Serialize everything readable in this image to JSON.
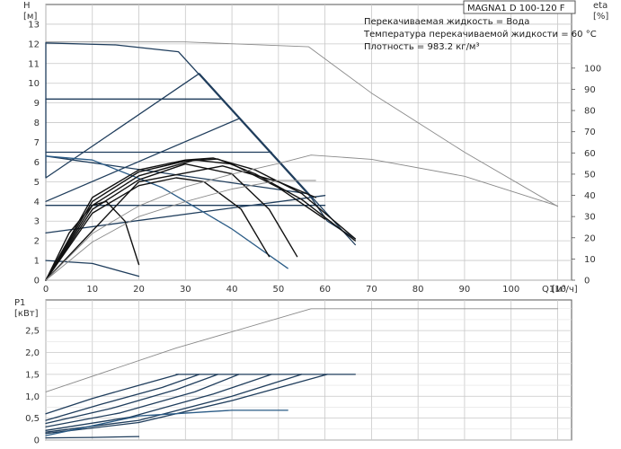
{
  "model": "MAGNA1 D 100-120 F",
  "fluid_info": [
    "Перекачиваемая жидкость = Вода",
    "Температура перекачиваемой жидкости = 60 °C",
    "Плотность = 983.2 кг/м³"
  ],
  "colors": {
    "grid": "#c8c8c8",
    "dark_curve": "#1f3d5c",
    "blue_curve": "#2a5b86",
    "gray_curve": "#8a8a8a",
    "black_curve": "#111111",
    "axis": "#555555"
  },
  "chart_data": [
    {
      "type": "line",
      "ylabel": "H",
      "yunit": "[м]",
      "y2label": "eta",
      "y2unit": "[%]",
      "xlabel": "Q",
      "xunit": "[м³/ч]",
      "xlim": [
        0,
        113
      ],
      "ylim": [
        0,
        14
      ],
      "y2lim": [
        0,
        130
      ],
      "xticks": [
        0,
        10,
        20,
        30,
        40,
        50,
        60,
        70,
        80,
        90,
        100,
        110
      ],
      "yticks": [
        0,
        1,
        2,
        3,
        4,
        5,
        6,
        7,
        8,
        9,
        10,
        11,
        12,
        13
      ],
      "y2ticks": [
        0,
        10,
        20,
        30,
        40,
        50,
        60,
        70,
        80,
        90,
        100
      ],
      "grid": true,
      "series": [
        {
          "style": "gray",
          "axis": "y",
          "points": [
            [
              0,
              12.1
            ],
            [
              30,
              12.1
            ],
            [
              56.5,
              11.85
            ],
            [
              70,
              9.5
            ],
            [
              90,
              6.5
            ],
            [
              110,
              3.75
            ]
          ]
        },
        {
          "style": "dark",
          "axis": "y",
          "points": [
            [
              0,
              12.05
            ],
            [
              15,
              11.95
            ],
            [
              28.5,
              11.6
            ],
            [
              57,
              4.2
            ],
            [
              60.5,
              3.0
            ],
            [
              66.5,
              2.1
            ]
          ]
        },
        {
          "style": "dark",
          "axis": "y",
          "points": [
            [
              0,
              12.05
            ],
            [
              0,
              5.2
            ],
            [
              33,
              10.5
            ],
            [
              66.5,
              1.8
            ]
          ]
        },
        {
          "style": "dark",
          "axis": "y",
          "points": [
            [
              0,
              9.2
            ],
            [
              37.5,
              9.2
            ]
          ]
        },
        {
          "style": "dark",
          "axis": "y",
          "points": [
            [
              0,
              4.0
            ],
            [
              41.5,
              8.2
            ]
          ]
        },
        {
          "style": "dark",
          "axis": "y",
          "points": [
            [
              0,
              6.5
            ],
            [
              48.5,
              6.5
            ]
          ]
        },
        {
          "style": "dark",
          "axis": "y",
          "points": [
            [
              0,
              6.3
            ],
            [
              56,
              4.4
            ]
          ]
        },
        {
          "style": "dark",
          "axis": "y",
          "points": [
            [
              0,
              2.4
            ],
            [
              60,
              4.3
            ]
          ]
        },
        {
          "style": "dark",
          "axis": "y",
          "points": [
            [
              0,
              3.8
            ],
            [
              60,
              3.8
            ]
          ]
        },
        {
          "style": "dark",
          "axis": "y",
          "points": [
            [
              0,
              1.0
            ],
            [
              10,
              0.85
            ],
            [
              20,
              0.2
            ]
          ]
        },
        {
          "style": "blue",
          "axis": "y",
          "points": [
            [
              0,
              6.3
            ],
            [
              10,
              6.1
            ],
            [
              25,
              4.7
            ],
            [
              40,
              2.6
            ],
            [
              52,
              0.6
            ]
          ]
        },
        {
          "style": "black",
          "axis": "y",
          "points": [
            [
              0,
              0
            ],
            [
              10,
              4.2
            ],
            [
              20,
              5.6
            ],
            [
              30,
              6.1
            ],
            [
              36,
              6.2
            ],
            [
              45,
              5.6
            ],
            [
              55,
              4.4
            ],
            [
              66.5,
              2.1
            ]
          ]
        },
        {
          "style": "black",
          "axis": "y",
          "points": [
            [
              0,
              0
            ],
            [
              10,
              4.0
            ],
            [
              20,
              5.5
            ],
            [
              30,
              6.05
            ],
            [
              37,
              6.15
            ],
            [
              45,
              5.4
            ],
            [
              55,
              4.1
            ],
            [
              66.5,
              2.0
            ]
          ]
        },
        {
          "style": "black",
          "axis": "y",
          "points": [
            [
              0,
              0
            ],
            [
              10,
              3.8
            ],
            [
              20,
              5.3
            ],
            [
              32,
              6.1
            ],
            [
              40,
              5.9
            ],
            [
              50,
              4.7
            ],
            [
              60,
              3.1
            ]
          ]
        },
        {
          "style": "black",
          "axis": "y",
          "points": [
            [
              0,
              0
            ],
            [
              10,
              3.6
            ],
            [
              20,
              5.1
            ],
            [
              30,
              5.9
            ],
            [
              40,
              5.4
            ],
            [
              48,
              3.6
            ],
            [
              54,
              1.2
            ]
          ]
        },
        {
          "style": "black",
          "axis": "y",
          "points": [
            [
              0,
              0
            ],
            [
              10,
              3.4
            ],
            [
              20,
              4.8
            ],
            [
              28,
              5.2
            ],
            [
              34,
              5.0
            ],
            [
              42,
              3.6
            ],
            [
              48,
              1.2
            ]
          ]
        },
        {
          "style": "black",
          "axis": "y",
          "points": [
            [
              0,
              0
            ],
            [
              5,
              2.4
            ],
            [
              10,
              3.8
            ],
            [
              13,
              4.0
            ],
            [
              17,
              3.0
            ],
            [
              20,
              0.8
            ]
          ]
        },
        {
          "style": "black",
          "axis": "y",
          "points": [
            [
              0,
              0
            ],
            [
              20,
              5.0
            ],
            [
              38,
              5.8
            ],
            [
              50,
              5.0
            ],
            [
              58,
              4.2
            ]
          ]
        },
        {
          "style": "gray",
          "axis": "y2",
          "points": [
            [
              0,
              0
            ],
            [
              10,
              22
            ],
            [
              20,
              35
            ],
            [
              30,
              44
            ],
            [
              40,
              50
            ],
            [
              50,
              55
            ],
            [
              57,
              59
            ],
            [
              70,
              57
            ],
            [
              90,
              49
            ],
            [
              110,
              35
            ]
          ]
        },
        {
          "style": "gray",
          "axis": "y2",
          "points": [
            [
              0,
              0
            ],
            [
              10,
              18
            ],
            [
              20,
              30
            ],
            [
              30,
              37
            ],
            [
              40,
              43
            ],
            [
              50,
              47
            ],
            [
              58,
              47
            ]
          ]
        }
      ]
    },
    {
      "type": "line",
      "ylabel": "P1",
      "yunit": "[кВт]",
      "xlim": [
        0,
        113
      ],
      "ylim": [
        0,
        3.2
      ],
      "yticks": [
        "0",
        "0,5",
        "1,0",
        "1,5",
        "2,0",
        "2,5"
      ],
      "ytick_values": [
        0,
        0.5,
        1.0,
        1.5,
        2.0,
        2.5
      ],
      "grid": true,
      "series": [
        {
          "style": "gray",
          "points": [
            [
              0,
              1.1
            ],
            [
              28,
              2.1
            ],
            [
              57,
              3.0
            ],
            [
              110,
              3.0
            ]
          ]
        },
        {
          "style": "dark",
          "points": [
            [
              28,
              1.5
            ],
            [
              66.5,
              1.5
            ]
          ]
        },
        {
          "style": "dark",
          "points": [
            [
              0,
              0.6
            ],
            [
              10,
              0.95
            ],
            [
              20,
              1.25
            ],
            [
              28.5,
              1.5
            ]
          ]
        },
        {
          "style": "dark",
          "points": [
            [
              0,
              0.45
            ],
            [
              12,
              0.82
            ],
            [
              25,
              1.2
            ],
            [
              33,
              1.5
            ]
          ]
        },
        {
          "style": "dark",
          "points": [
            [
              0,
              0.38
            ],
            [
              14,
              0.72
            ],
            [
              28,
              1.15
            ],
            [
              37,
              1.5
            ]
          ]
        },
        {
          "style": "dark",
          "points": [
            [
              0,
              0.3
            ],
            [
              16,
              0.62
            ],
            [
              32,
              1.1
            ],
            [
              41.5,
              1.5
            ]
          ]
        },
        {
          "style": "dark",
          "points": [
            [
              0,
              0.22
            ],
            [
              18,
              0.52
            ],
            [
              36,
              1.05
            ],
            [
              48.5,
              1.5
            ]
          ]
        },
        {
          "style": "dark",
          "points": [
            [
              0,
              0.18
            ],
            [
              20,
              0.45
            ],
            [
              40,
              1.0
            ],
            [
              55,
              1.5
            ]
          ]
        },
        {
          "style": "dark",
          "points": [
            [
              0,
              0.15
            ],
            [
              20,
              0.4
            ],
            [
              40,
              0.9
            ],
            [
              60.5,
              1.5
            ]
          ]
        },
        {
          "style": "blue",
          "points": [
            [
              0,
              0.1
            ],
            [
              20,
              0.55
            ],
            [
              40,
              0.68
            ],
            [
              52,
              0.68
            ]
          ]
        },
        {
          "style": "dark",
          "points": [
            [
              0,
              0.05
            ],
            [
              10,
              0.06
            ],
            [
              20,
              0.08
            ]
          ]
        }
      ]
    }
  ]
}
